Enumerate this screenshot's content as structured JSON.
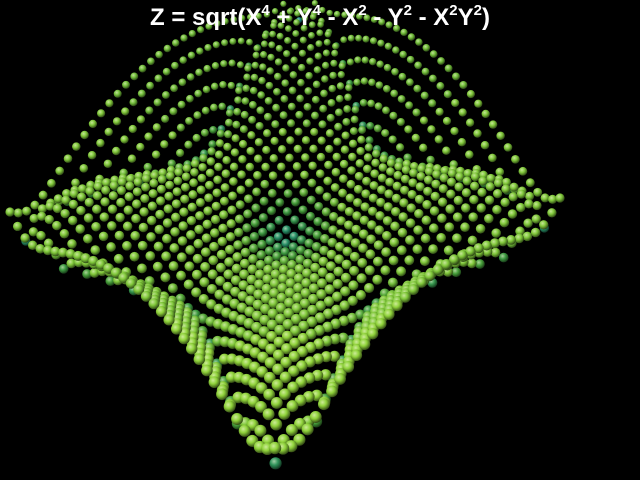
{
  "chart_data": {
    "type": "scatter",
    "render": "3d-surface-spheres",
    "title_parts": [
      {
        "t": "Z = sqrt(X"
      },
      {
        "sup": "4"
      },
      {
        "t": " + Y"
      },
      {
        "sup": "4"
      },
      {
        "t": " - X"
      },
      {
        "sup": "2"
      },
      {
        "t": " - Y"
      },
      {
        "sup": "2"
      },
      {
        "t": " - X"
      },
      {
        "sup": "2"
      },
      {
        "t": "Y"
      },
      {
        "sup": "2"
      },
      {
        "t": ")"
      }
    ],
    "function": "sqrt(|x^4 + y^4 - x^2 - y^2 - x^2*y^2|)",
    "xlim": [
      -1.5,
      1.5
    ],
    "ylim": [
      -1.5,
      1.5
    ],
    "grid_points_per_side": 36,
    "colors": {
      "background": "#000000",
      "title": "#ffffff",
      "low": "#1a8a80",
      "mid": "#3f9a3a",
      "high": "#8fd23a"
    }
  }
}
